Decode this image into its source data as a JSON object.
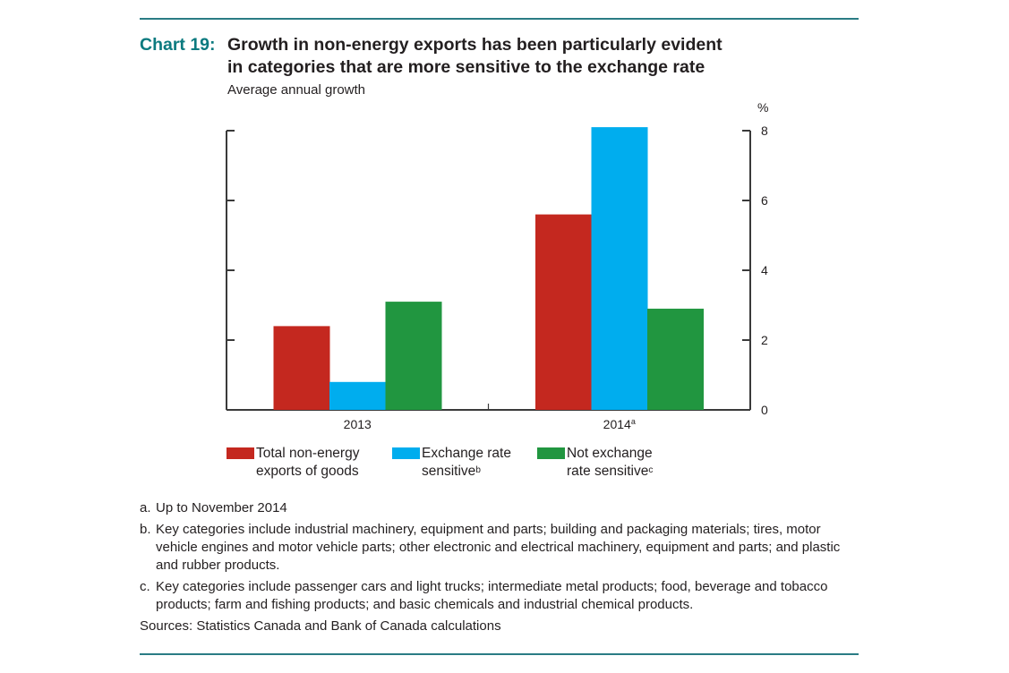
{
  "header": {
    "chart_label": "Chart 19:",
    "title_line1": "Growth in non-energy exports has been particularly evident",
    "title_line2": "in categories that are more sensitive to the exchange rate",
    "subtitle": "Average annual growth"
  },
  "chart_data": {
    "type": "bar",
    "title": "Growth in non-energy exports has been particularly evident in categories that are more sensitive to the exchange rate",
    "subtitle": "Average annual growth",
    "ylabel": "%",
    "xlabel": "",
    "categories": [
      "2013",
      "2014"
    ],
    "category_superscripts": [
      "",
      "a"
    ],
    "ylim": [
      0,
      8
    ],
    "yticks": [
      0,
      2,
      4,
      6,
      8
    ],
    "grid": false,
    "y_axis_side": "right",
    "series": [
      {
        "name": "Total non-energy exports of goods",
        "superscript": "",
        "color": "#c4281f",
        "values": [
          2.4,
          5.6
        ]
      },
      {
        "name": "Exchange rate sensitive",
        "superscript": "b",
        "color": "#00adee",
        "values": [
          0.8,
          8.1
        ]
      },
      {
        "name": "Not exchange rate sensitive",
        "superscript": "c",
        "color": "#219640",
        "values": [
          3.1,
          2.9
        ]
      }
    ],
    "legend_position": "bottom-left"
  },
  "legend": [
    {
      "line1": "Total non-energy",
      "line2": "exports of goods",
      "sup": "",
      "color": "#c4281f"
    },
    {
      "line1": "Exchange rate",
      "line2": "sensitive",
      "sup": "b",
      "color": "#00adee"
    },
    {
      "line1": "Not exchange",
      "line2": "rate sensitive",
      "sup": "c",
      "color": "#219640"
    }
  ],
  "notes": [
    {
      "label": "a.",
      "text": "Up to November 2014"
    },
    {
      "label": "b.",
      "text": "Key categories include industrial machinery, equipment and parts; building and packaging materials; tires, motor vehicle engines and motor vehicle parts; other electronic and electrical machinery, equipment and parts; and plastic and rubber products."
    },
    {
      "label": "c.",
      "text": "Key categories include passenger cars and light trucks; intermediate metal products; food, beverage and tobacco products; farm and fishing products; and basic chemicals and industrial chemical products."
    }
  ],
  "sources": "Sources: Statistics Canada and Bank of Canada calculations",
  "colors": {
    "accent": "#0b7a7f",
    "rule": "#2a7c84"
  }
}
